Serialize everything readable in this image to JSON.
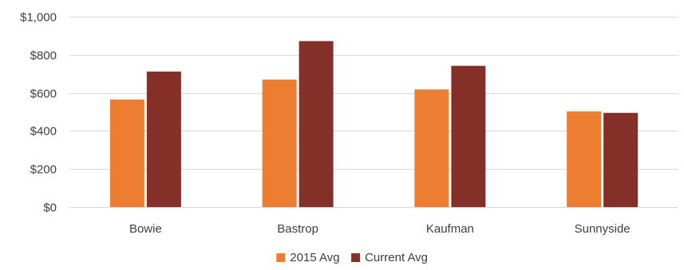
{
  "chart_data": {
    "type": "bar",
    "categories": [
      "Bowie",
      "Bastrop",
      "Kaufman",
      "Sunnyside"
    ],
    "series": [
      {
        "name": "2015 Avg",
        "color": "#ed7d31",
        "values": [
          565,
          670,
          618,
          503
        ]
      },
      {
        "name": "Current Avg",
        "color": "#843029",
        "values": [
          712,
          872,
          742,
          495
        ]
      }
    ],
    "ylim": [
      0,
      1000
    ],
    "yticks": [
      0,
      200,
      400,
      600,
      800,
      1000
    ],
    "ytick_labels": [
      "$0",
      "$200",
      "$400",
      "$600",
      "$800",
      "$1,000"
    ],
    "grid": true,
    "legend_position": "bottom"
  }
}
